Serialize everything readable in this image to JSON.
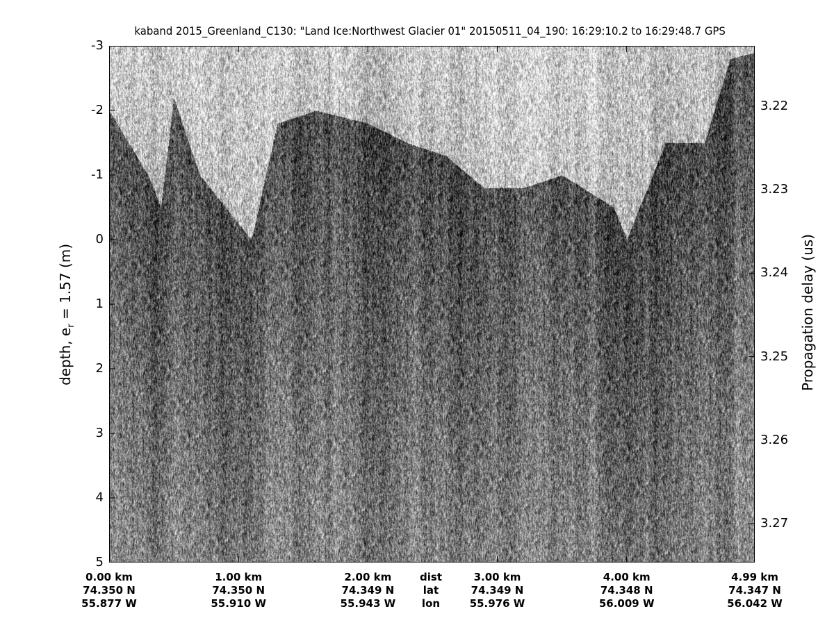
{
  "chart_data": {
    "type": "heatmap",
    "title": "kaband 2015_Greenland_C130: \"Land Ice:Northwest Glacier 01\"  20150511_04_190: 16:29:10.2 to 16:29:48.7 GPS",
    "colormap": "grayscale",
    "ylabel": "depth, e",
    "ylabel_subscript": "r",
    "ylabel_suffix": " = 1.57 (m)",
    "ylabel_right": "Propagation delay (us)",
    "ylim": [
      -3,
      5
    ],
    "yticks": [
      "-3",
      "-2",
      "-1",
      "0",
      "1",
      "2",
      "3",
      "4",
      "5"
    ],
    "yticks_values": [
      -3,
      -2,
      -1,
      0,
      1,
      2,
      3,
      4,
      5
    ],
    "yticks_right": [
      "3.22",
      "3.23",
      "3.24",
      "3.25",
      "3.26",
      "3.27"
    ],
    "yticks_right_values": [
      3.22,
      3.23,
      3.24,
      3.25,
      3.26,
      3.27
    ],
    "xlim_km": [
      0,
      4.99
    ],
    "x_rows": {
      "dist": {
        "label": "dist",
        "values": [
          "0.00 km",
          "1.00 km",
          "2.00 km",
          "3.00 km",
          "4.00 km",
          "4.99 km"
        ]
      },
      "lat": {
        "label": "lat",
        "values": [
          "74.350 N",
          "74.350 N",
          "74.349 N",
          "74.349 N",
          "74.348 N",
          "74.347 N"
        ]
      },
      "lon": {
        "label": "lon",
        "values": [
          "55.877 W",
          "55.910 W",
          "55.943 W",
          "55.976 W",
          "56.009 W",
          "56.042 W"
        ]
      }
    },
    "xtick_km": [
      0,
      1,
      2,
      3,
      4,
      4.99
    ],
    "surface_profile": {
      "km": [
        0,
        0.3,
        0.4,
        0.5,
        0.7,
        1.1,
        1.3,
        1.6,
        2.0,
        2.3,
        2.6,
        2.9,
        3.2,
        3.5,
        3.9,
        4.0,
        4.3,
        4.6,
        4.8,
        4.99
      ],
      "depth_m": [
        -2,
        -1,
        -0.5,
        -2.2,
        -1,
        0,
        -1.8,
        -2,
        -1.8,
        -1.5,
        -1.3,
        -0.8,
        -0.8,
        -1,
        -0.5,
        0,
        -1.5,
        -1.5,
        -2.8,
        -2.9
      ]
    }
  }
}
